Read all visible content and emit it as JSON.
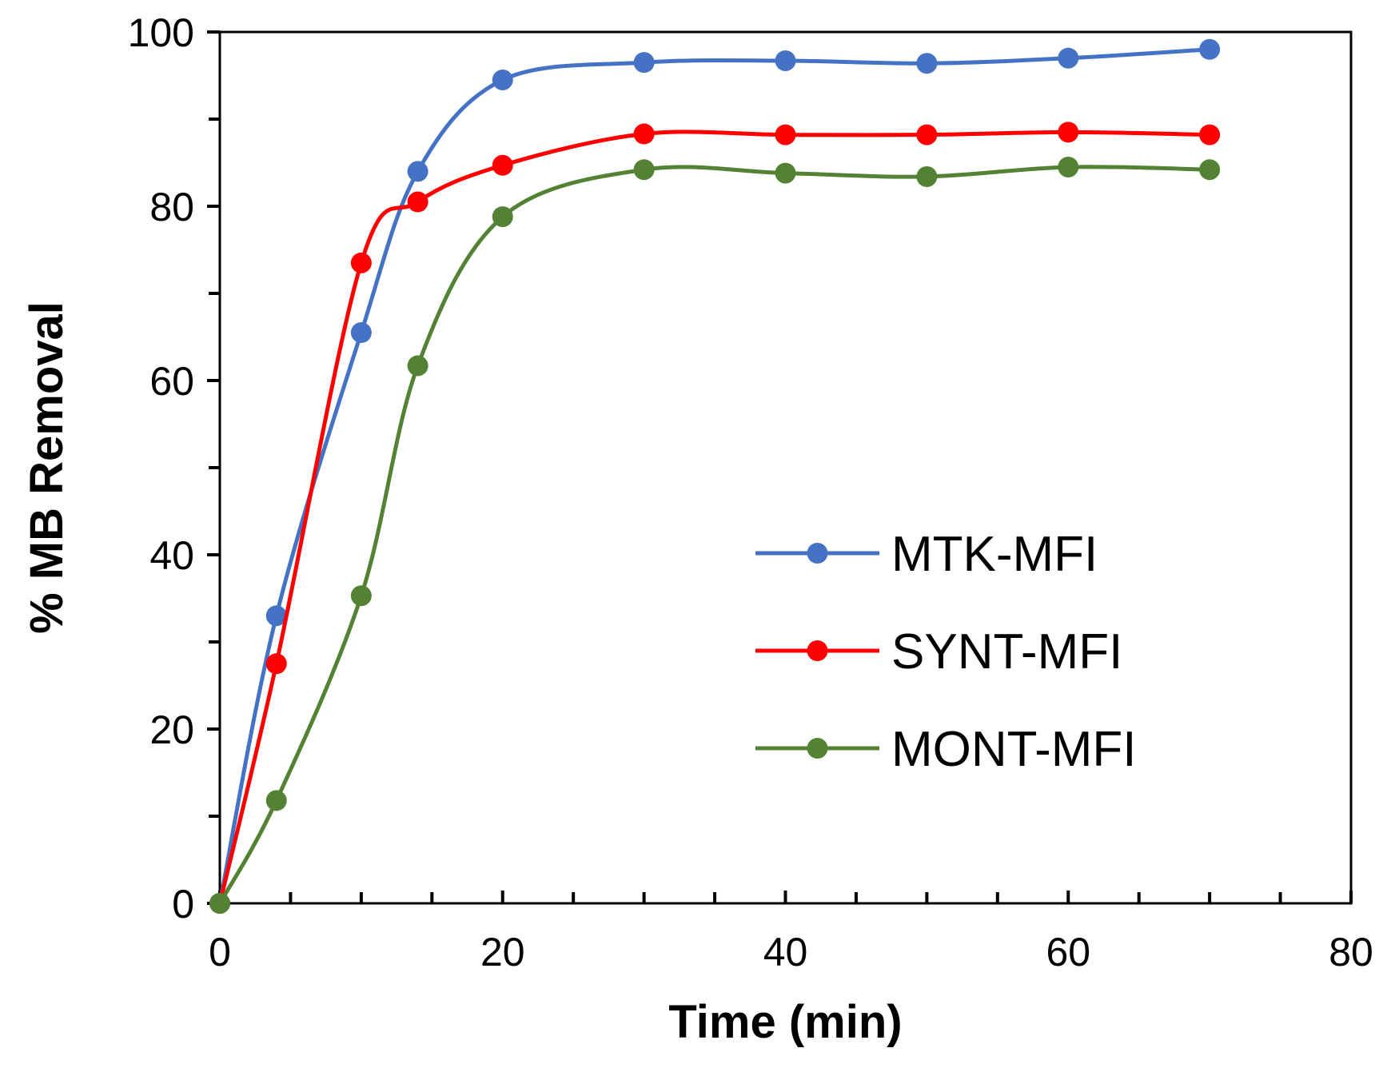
{
  "chart_data": {
    "type": "line",
    "title": "",
    "xlabel": "Time (min)",
    "ylabel": "% MB Removal",
    "xlim": [
      0,
      80
    ],
    "ylim": [
      0,
      100
    ],
    "x_ticks": [
      0,
      20,
      40,
      60,
      80
    ],
    "y_ticks": [
      0,
      20,
      40,
      60,
      80,
      100
    ],
    "x_minor_step": 5,
    "y_minor_step": 10,
    "grid": false,
    "legend_position": "right-center",
    "series": [
      {
        "name": "MTK-MFI",
        "color": "#4472C4",
        "x": [
          0,
          4,
          10,
          14,
          20,
          30,
          40,
          50,
          60,
          70
        ],
        "y": [
          0,
          33,
          65.5,
          84,
          94.5,
          96.5,
          96.7,
          96.4,
          97,
          98
        ]
      },
      {
        "name": "SYNT-MFI",
        "color": "#FF0000",
        "x": [
          0,
          4,
          10,
          14,
          20,
          30,
          40,
          50,
          60,
          70
        ],
        "y": [
          0,
          27.5,
          73.5,
          80.5,
          84.7,
          88.3,
          88.2,
          88.2,
          88.5,
          88.2
        ]
      },
      {
        "name": "MONT-MFI",
        "color": "#548235",
        "x": [
          0,
          4,
          10,
          14,
          20,
          30,
          40,
          50,
          60,
          70
        ],
        "y": [
          0,
          11.8,
          35.3,
          61.7,
          78.8,
          84.2,
          83.8,
          83.4,
          84.5,
          84.2
        ]
      }
    ]
  }
}
